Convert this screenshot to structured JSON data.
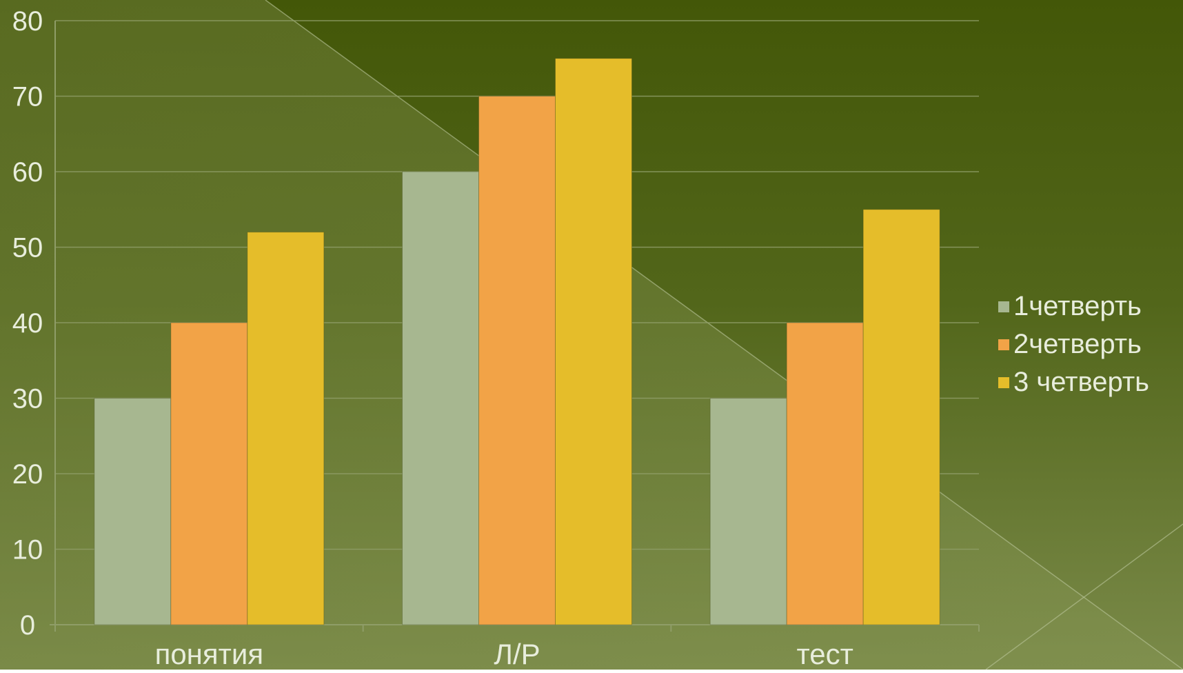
{
  "chart_data": {
    "type": "bar",
    "categories": [
      "понятия",
      "Л/Р",
      "тест"
    ],
    "series": [
      {
        "name": "1четверть",
        "values": [
          30,
          60,
          30
        ]
      },
      {
        "name": "2четверть",
        "values": [
          40,
          70,
          40
        ]
      },
      {
        "name": "3 четверть",
        "values": [
          52,
          75,
          55
        ]
      }
    ],
    "yticks": [
      "0",
      "10",
      "20",
      "30",
      "40",
      "50",
      "60",
      "70",
      "80"
    ],
    "ylim": [
      0,
      80
    ],
    "grid": true,
    "legend_position": "right",
    "colors": {
      "series": [
        "#a7b790",
        "#f2a347",
        "#e5bd2a"
      ],
      "background_dark": "#435708",
      "background_light": "#7a8a49",
      "gridline": "#8f9d68",
      "text": "#e8eddc"
    }
  }
}
